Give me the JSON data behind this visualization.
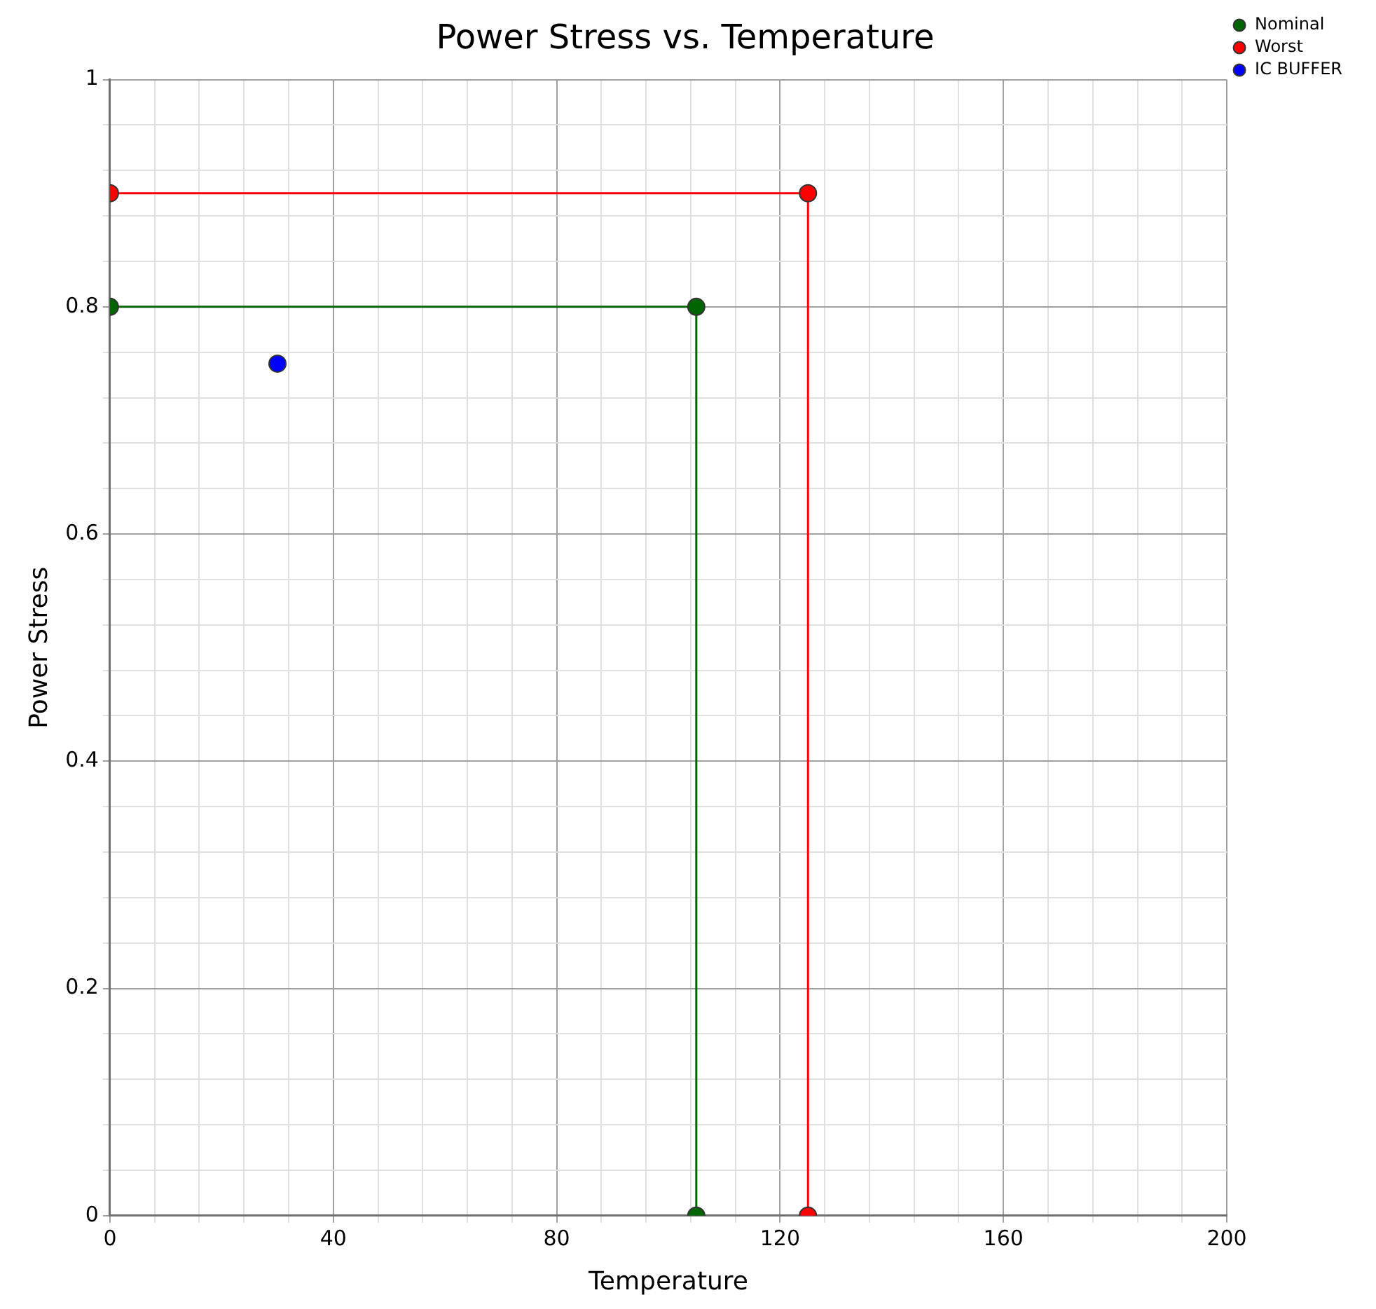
{
  "chart_data": {
    "type": "line",
    "title": "Power Stress vs. Temperature",
    "xlabel": "Temperature",
    "ylabel": "Power Stress",
    "xlim": [
      0,
      200
    ],
    "ylim": [
      0,
      1
    ],
    "xticks": [
      0,
      {
        "value": 8,
        "label": null
      },
      {
        "value": 16,
        "label": null
      },
      {
        "value": 24,
        "label": null
      },
      {
        "value": 32,
        "label": null
      },
      40,
      {
        "value": 48,
        "label": null
      },
      {
        "value": 56,
        "label": null
      },
      {
        "value": 64,
        "label": null
      },
      {
        "value": 72,
        "label": null
      },
      80,
      {
        "value": 88,
        "label": null
      },
      {
        "value": 96,
        "label": null
      },
      {
        "value": 104,
        "label": null
      },
      {
        "value": 112,
        "label": null
      },
      120,
      {
        "value": 128,
        "label": null
      },
      {
        "value": 136,
        "label": null
      },
      {
        "value": 144,
        "label": null
      },
      {
        "value": 152,
        "label": null
      },
      160,
      {
        "value": 168,
        "label": null
      },
      {
        "value": 176,
        "label": null
      },
      {
        "value": 184,
        "label": null
      },
      {
        "value": 192,
        "label": null
      },
      200
    ],
    "yticks": [
      0,
      {
        "value": 0.04,
        "label": null
      },
      {
        "value": 0.08,
        "label": null
      },
      {
        "value": 0.12,
        "label": null
      },
      {
        "value": 0.16,
        "label": null
      },
      0.2,
      {
        "value": 0.24,
        "label": null
      },
      {
        "value": 0.28,
        "label": null
      },
      {
        "value": 0.32,
        "label": null
      },
      {
        "value": 0.36,
        "label": null
      },
      0.4,
      {
        "value": 0.44,
        "label": null
      },
      {
        "value": 0.48,
        "label": null
      },
      {
        "value": 0.52,
        "label": null
      },
      {
        "value": 0.56,
        "label": null
      },
      0.6,
      {
        "value": 0.64,
        "label": null
      },
      {
        "value": 0.68,
        "label": null
      },
      {
        "value": 0.72,
        "label": null
      },
      {
        "value": 0.76,
        "label": null
      },
      0.8,
      {
        "value": 0.84,
        "label": null
      },
      {
        "value": 0.88,
        "label": null
      },
      {
        "value": 0.92,
        "label": null
      },
      {
        "value": 0.96,
        "label": null
      },
      1
    ],
    "series": [
      {
        "name": "Nominal",
        "type": "line",
        "color": "#006400",
        "x": [
          0,
          105,
          105
        ],
        "values": [
          0.8,
          0.8,
          0
        ]
      },
      {
        "name": "Worst",
        "type": "line",
        "color": "#ff0000",
        "x": [
          0,
          125,
          125
        ],
        "values": [
          0.9,
          0.9,
          0
        ]
      },
      {
        "name": "IC BUFFER",
        "type": "scatter",
        "color": "#0000ff",
        "x": [
          30
        ],
        "values": [
          0.75
        ]
      }
    ],
    "grid": true,
    "legend": "top right",
    "marker": "circle"
  }
}
